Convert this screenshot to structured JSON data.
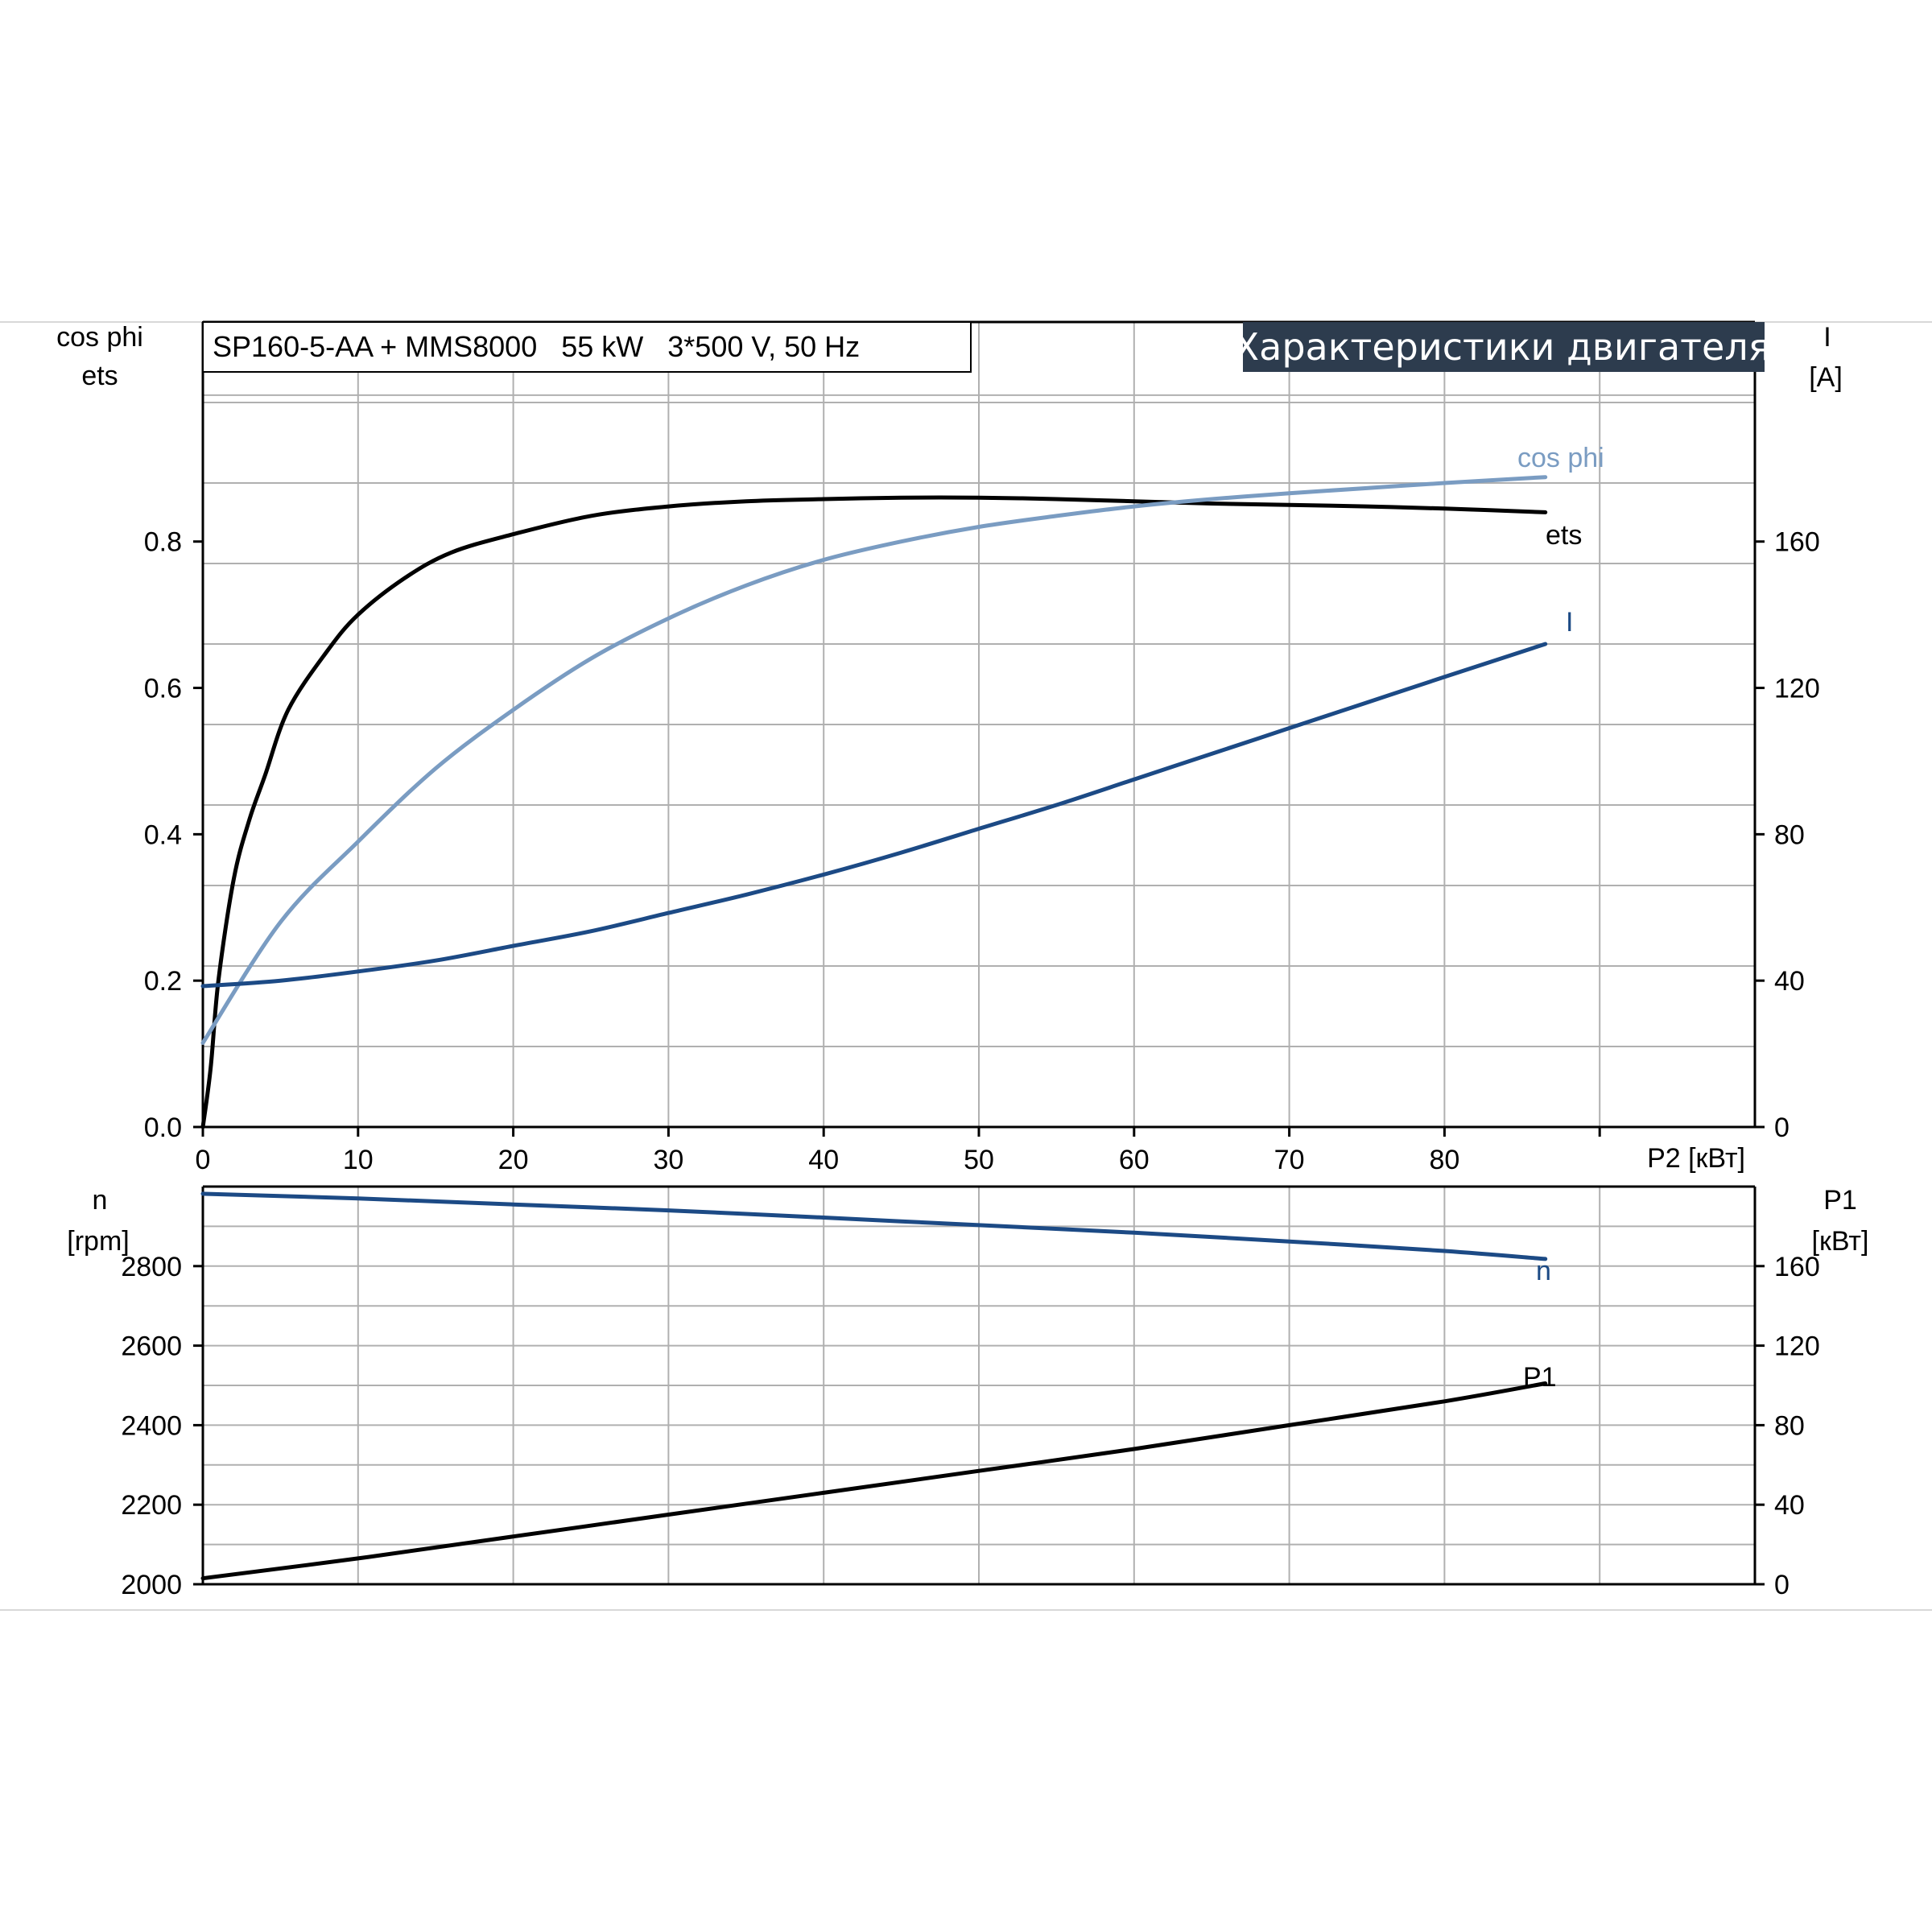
{
  "model_label": "SP160-5-AA + MMS8000   55 kW   3*500 V, 50 Hz",
  "banner_title": "Характеристики двигателя",
  "colors": {
    "ets": "#000000",
    "cos_phi": "#7a9cc2",
    "current": "#1c4a85",
    "speed": "#1c4a85",
    "p1": "#000000",
    "grid": "#b0b0b0",
    "banner_bg": "#2d3c4e"
  },
  "chart_data": [
    {
      "type": "line",
      "x_label": "P2 [кВт]",
      "x_ticks": [
        "0",
        "10",
        "20",
        "30",
        "40",
        "50",
        "60",
        "70",
        "80"
      ],
      "xlim": [
        0,
        100
      ],
      "left_axis": {
        "label_line1": "cos phi",
        "label_line2": "ets",
        "ylim": [
          0,
          1.1
        ],
        "ticks": [
          "0.0",
          "0.2",
          "0.4",
          "0.6",
          "0.8"
        ]
      },
      "right_axis": {
        "label_line1": "I",
        "label_line2": "[A]",
        "ylim": [
          0,
          220
        ],
        "ticks": [
          "0",
          "40",
          "80",
          "120",
          "160"
        ]
      },
      "grid": true,
      "series": [
        {
          "name": "ets",
          "axis": "left",
          "x": [
            0,
            0.5,
            1,
            2,
            3,
            4,
            5.5,
            8,
            10,
            13,
            16,
            20,
            25,
            30,
            35,
            40,
            45,
            50,
            55,
            60,
            65,
            70,
            75,
            80,
            86.5
          ],
          "y": [
            0,
            0.08,
            0.2,
            0.34,
            0.42,
            0.48,
            0.57,
            0.65,
            0.7,
            0.75,
            0.785,
            0.81,
            0.835,
            0.848,
            0.855,
            0.858,
            0.86,
            0.86,
            0.858,
            0.855,
            0.852,
            0.85,
            0.848,
            0.845,
            0.84
          ]
        },
        {
          "name": "cos phi",
          "axis": "left",
          "x": [
            0,
            5,
            10,
            15,
            20,
            25,
            30,
            35,
            40,
            45,
            50,
            55,
            60,
            65,
            70,
            75,
            80,
            86.5
          ],
          "y": [
            0.115,
            0.28,
            0.39,
            0.49,
            0.57,
            0.64,
            0.695,
            0.74,
            0.775,
            0.8,
            0.82,
            0.835,
            0.848,
            0.858,
            0.866,
            0.873,
            0.88,
            0.888
          ]
        },
        {
          "name": "I",
          "axis": "right",
          "x": [
            0,
            5,
            10,
            15,
            20,
            25,
            30,
            35,
            40,
            45,
            50,
            55,
            60,
            65,
            70,
            75,
            80,
            86.5
          ],
          "y": [
            38.5,
            40,
            42.5,
            45.5,
            49.5,
            53.5,
            58.5,
            63.5,
            69,
            75,
            81.5,
            88,
            95,
            102,
            109,
            116,
            123,
            132
          ]
        }
      ]
    },
    {
      "type": "line",
      "xlim": [
        0,
        100
      ],
      "left_axis": {
        "label_line1": "n",
        "label_line2": "[rpm]",
        "ylim": [
          2000,
          3000
        ],
        "ticks": [
          "2000",
          "2200",
          "2400",
          "2600",
          "2800"
        ]
      },
      "right_axis": {
        "label_line1": "P1",
        "label_line2": "[кВт]",
        "ylim": [
          0,
          200
        ],
        "ticks": [
          "0",
          "40",
          "80",
          "120",
          "160"
        ]
      },
      "grid": true,
      "series": [
        {
          "name": "n",
          "axis": "left",
          "x": [
            0,
            10,
            20,
            30,
            40,
            50,
            60,
            70,
            80,
            86.5
          ],
          "y": [
            2982,
            2970,
            2955,
            2940,
            2922,
            2903,
            2884,
            2862,
            2838,
            2818
          ]
        },
        {
          "name": "P1",
          "axis": "right",
          "x": [
            0,
            10,
            20,
            30,
            40,
            50,
            60,
            70,
            80,
            86.5
          ],
          "y": [
            3,
            13,
            24,
            35,
            46,
            57,
            68,
            80,
            92,
            101
          ]
        }
      ]
    }
  ]
}
